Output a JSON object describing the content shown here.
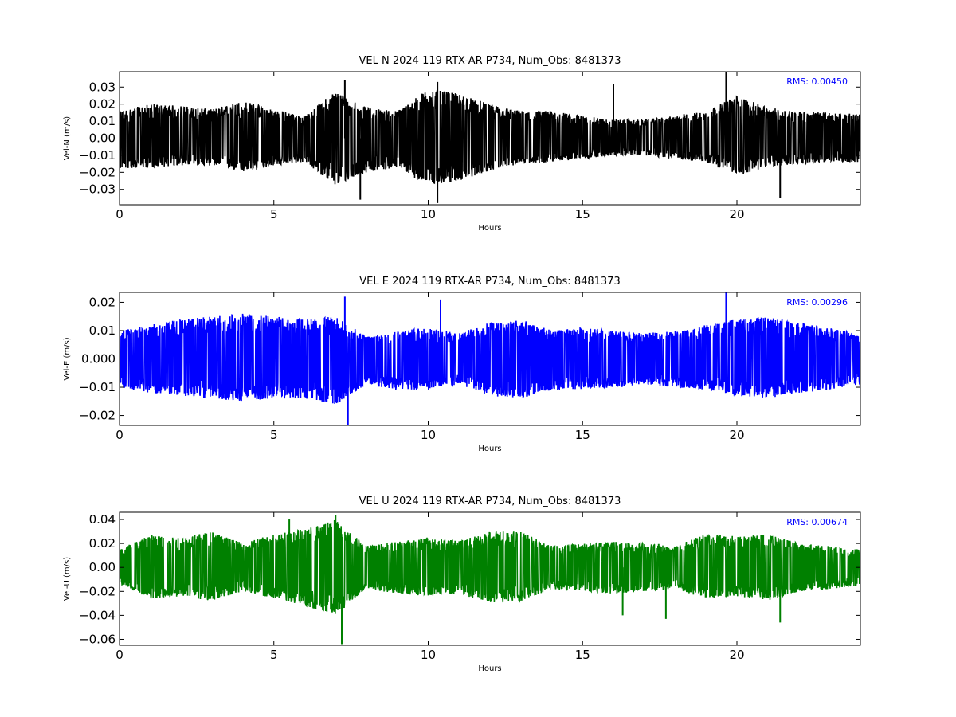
{
  "chart_data": [
    {
      "type": "line",
      "title": "VEL N 2024 119 RTX-AR  P734, Num_Obs: 8481373",
      "xlabel": "Hours",
      "ylabel": "Vel-N (m/s)",
      "xlim": [
        0,
        24
      ],
      "ylim": [
        -0.039,
        0.039
      ],
      "xticks": [
        0,
        5,
        10,
        15,
        20
      ],
      "xtick_labels": [
        "0",
        "5",
        "10",
        "15",
        "20"
      ],
      "yticks": [
        -0.03,
        -0.02,
        -0.01,
        0.0,
        0.01,
        0.02,
        0.03
      ],
      "ytick_labels": [
        "−0.03",
        "−0.02",
        "−0.01",
        "0.00",
        "0.01",
        "0.02",
        "0.03"
      ],
      "grid": false,
      "color": "#000000",
      "annotation": "RMS:  0.00450",
      "annotation_color": "#0000ff",
      "series": [
        {
          "x": [
            0,
            1,
            2,
            3,
            4,
            5,
            6,
            7,
            8,
            9,
            10,
            11,
            12,
            13,
            14,
            15,
            16,
            17,
            18,
            19,
            20,
            21,
            22,
            23,
            24
          ],
          "max": [
            0.016,
            0.02,
            0.019,
            0.017,
            0.022,
            0.017,
            0.013,
            0.028,
            0.018,
            0.016,
            0.029,
            0.026,
            0.02,
            0.016,
            0.016,
            0.013,
            0.011,
            0.011,
            0.013,
            0.016,
            0.025,
            0.018,
            0.016,
            0.015,
            0.014
          ],
          "min": [
            -0.018,
            -0.017,
            -0.016,
            -0.016,
            -0.02,
            -0.016,
            -0.014,
            -0.028,
            -0.02,
            -0.017,
            -0.028,
            -0.025,
            -0.019,
            -0.015,
            -0.014,
            -0.012,
            -0.01,
            -0.01,
            -0.012,
            -0.014,
            -0.022,
            -0.017,
            -0.015,
            -0.014,
            -0.014
          ],
          "spikes": [
            {
              "x": 7.3,
              "y": 0.034
            },
            {
              "x": 7.8,
              "y": -0.036
            },
            {
              "x": 10.3,
              "y": 0.033
            },
            {
              "x": 10.3,
              "y": -0.038
            },
            {
              "x": 16.0,
              "y": 0.032
            },
            {
              "x": 19.65,
              "y": 0.039
            },
            {
              "x": 21.4,
              "y": -0.035
            }
          ]
        }
      ]
    },
    {
      "type": "line",
      "title": "VEL E 2024 119 RTX-AR  P734, Num_Obs: 8481373",
      "xlabel": "Hours",
      "ylabel": "Vel-E (m/s)",
      "xlim": [
        0,
        24
      ],
      "ylim": [
        -0.0235,
        0.0235
      ],
      "xticks": [
        0,
        5,
        10,
        15,
        20
      ],
      "xtick_labels": [
        "0",
        "5",
        "10",
        "15",
        "20"
      ],
      "yticks": [
        -0.02,
        -0.01,
        0.0,
        0.01,
        0.02
      ],
      "ytick_labels": [
        "−0.02",
        "−0.01",
        "0.000",
        "0.01",
        "0.02"
      ],
      "grid": false,
      "color": "#0000ff",
      "annotation": "RMS:  0.00296",
      "annotation_color": "#0000ff",
      "series": [
        {
          "x": [
            0,
            1,
            2,
            3,
            4,
            5,
            6,
            7,
            8,
            9,
            10,
            11,
            12,
            13,
            14,
            15,
            16,
            17,
            18,
            19,
            20,
            21,
            22,
            23,
            24
          ],
          "max": [
            0.01,
            0.012,
            0.014,
            0.015,
            0.016,
            0.015,
            0.014,
            0.015,
            0.008,
            0.01,
            0.011,
            0.009,
            0.013,
            0.014,
            0.01,
            0.011,
            0.01,
            0.009,
            0.01,
            0.012,
            0.014,
            0.015,
            0.013,
            0.011,
            0.009
          ],
          "min": [
            -0.01,
            -0.012,
            -0.013,
            -0.014,
            -0.015,
            -0.014,
            -0.014,
            -0.016,
            -0.009,
            -0.011,
            -0.011,
            -0.009,
            -0.013,
            -0.014,
            -0.011,
            -0.011,
            -0.01,
            -0.009,
            -0.01,
            -0.011,
            -0.013,
            -0.014,
            -0.012,
            -0.011,
            -0.009
          ],
          "spikes": [
            {
              "x": 7.3,
              "y": 0.022
            },
            {
              "x": 7.4,
              "y": -0.0235
            },
            {
              "x": 10.4,
              "y": 0.021
            },
            {
              "x": 19.65,
              "y": 0.0235
            }
          ]
        }
      ]
    },
    {
      "type": "line",
      "title": "VEL U 2024 119 RTX-AR  P734, Num_Obs: 8481373",
      "xlabel": "Hours",
      "ylabel": "Vel-U (m/s)",
      "xlim": [
        0,
        24
      ],
      "ylim": [
        -0.065,
        0.046
      ],
      "xticks": [
        0,
        5,
        10,
        15,
        20
      ],
      "xtick_labels": [
        "0",
        "5",
        "10",
        "15",
        "20"
      ],
      "yticks": [
        -0.06,
        -0.04,
        -0.02,
        0.0,
        0.02,
        0.04
      ],
      "ytick_labels": [
        "−0.06",
        "−0.04",
        "−0.02",
        "0.00",
        "0.02",
        "0.04"
      ],
      "grid": false,
      "color": "#008000",
      "annotation": "RMS:  0.00674",
      "annotation_color": "#0000ff",
      "series": [
        {
          "x": [
            0,
            1,
            2,
            3,
            4,
            5,
            6,
            7,
            8,
            9,
            10,
            11,
            12,
            13,
            14,
            15,
            16,
            17,
            18,
            19,
            20,
            21,
            22,
            23,
            24
          ],
          "max": [
            0.015,
            0.028,
            0.025,
            0.03,
            0.02,
            0.028,
            0.032,
            0.04,
            0.018,
            0.022,
            0.025,
            0.022,
            0.03,
            0.03,
            0.018,
            0.02,
            0.022,
            0.02,
            0.018,
            0.028,
            0.026,
            0.028,
            0.02,
            0.018,
            0.015
          ],
          "min": [
            -0.014,
            -0.026,
            -0.024,
            -0.028,
            -0.02,
            -0.026,
            -0.032,
            -0.04,
            -0.018,
            -0.022,
            -0.024,
            -0.022,
            -0.03,
            -0.028,
            -0.018,
            -0.02,
            -0.022,
            -0.02,
            -0.018,
            -0.026,
            -0.024,
            -0.028,
            -0.02,
            -0.018,
            -0.015
          ],
          "spikes": [
            {
              "x": 5.5,
              "y": 0.04
            },
            {
              "x": 7.0,
              "y": 0.044
            },
            {
              "x": 7.2,
              "y": -0.064
            },
            {
              "x": 16.3,
              "y": -0.04
            },
            {
              "x": 17.7,
              "y": -0.043
            },
            {
              "x": 21.4,
              "y": -0.046
            }
          ]
        }
      ]
    }
  ]
}
